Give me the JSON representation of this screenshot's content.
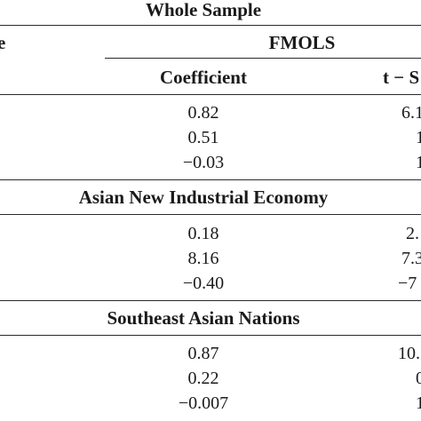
{
  "table": {
    "whole_sample_title": "Whole Sample",
    "col_label_cut": "e",
    "method": "FMOLS",
    "coef_header": "Coefficient",
    "stat_header_cut": "t − S",
    "sections": [
      {
        "title": "Whole Sample",
        "coefficients": [
          "0.82",
          "0.51",
          "−0.03"
        ],
        "stats_cut": [
          "6.1",
          "1",
          "1"
        ]
      },
      {
        "title": "Asian New Industrial Economy",
        "coefficients": [
          "0.18",
          "8.16",
          "−0.40"
        ],
        "stats_cut": [
          "2.",
          "7.3",
          "−7"
        ]
      },
      {
        "title": "Southeast Asian Nations",
        "coefficients": [
          "0.87",
          "0.22",
          "−0.007"
        ],
        "stats_cut": [
          "10.",
          "0",
          "1"
        ]
      }
    ]
  }
}
